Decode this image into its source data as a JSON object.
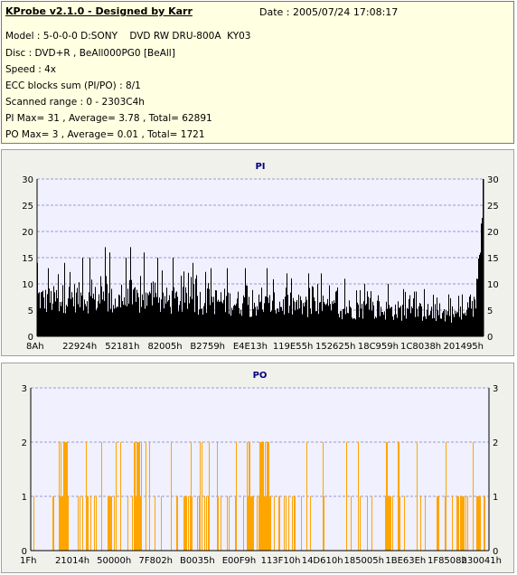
{
  "info": {
    "title": "KProbe v2.1.0 - Designed by Karr",
    "date": "Date : 2005/07/24 17:08:17",
    "lines": [
      "Model : 5-0-0-0 D:SONY    DVD RW DRU-800A  KY03",
      "Disc : DVD+R , BeAll000PG0 [BeAll]",
      "Speed : 4x",
      "ECC blocks sum (PI/PO) : 8/1",
      "Scanned range : 0 - 2303C4h",
      "PI Max= 31 , Average= 3.78 , Total= 62891",
      "PO Max= 3 , Average= 0.01 , Total= 1721"
    ]
  },
  "colors": {
    "pi_bars": "#000000",
    "po_bars": "#ffa500",
    "plot_bg": "#f0f0ff",
    "grid": "#9a9acd",
    "title": "#000080"
  },
  "chart_data": [
    {
      "type": "bar",
      "title": "PI",
      "ylim": [
        0,
        30
      ],
      "yticks": [
        0,
        5,
        10,
        15,
        20,
        25,
        30
      ],
      "xticks": [
        "8Ah",
        "22924h",
        "52181h",
        "82005h",
        "B2759h",
        "E4E13h",
        "119E55h",
        "152625h",
        "18C959h",
        "1C8038h",
        "201495h"
      ],
      "grid": true,
      "summary": {
        "max": 31,
        "average": 3.78,
        "total": 62891
      },
      "profile_points": [
        [
          0,
          10
        ],
        [
          10,
          9
        ],
        [
          40,
          10
        ],
        [
          80,
          9
        ],
        [
          120,
          9
        ],
        [
          160,
          9
        ],
        [
          200,
          9
        ],
        [
          240,
          8
        ],
        [
          280,
          8
        ],
        [
          320,
          7
        ],
        [
          360,
          7
        ],
        [
          400,
          6.5
        ],
        [
          440,
          6
        ],
        [
          475,
          5.5
        ],
        [
          478,
          5.5
        ],
        [
          484,
          8
        ],
        [
          488,
          14
        ],
        [
          491,
          22
        ],
        [
          493,
          29
        ]
      ],
      "spikes": [
        [
          0,
          14
        ],
        [
          12,
          13
        ],
        [
          30,
          14
        ],
        [
          50,
          15
        ],
        [
          58,
          15
        ],
        [
          75,
          17
        ],
        [
          80,
          16
        ],
        [
          98,
          15
        ],
        [
          103,
          17
        ],
        [
          118,
          16
        ],
        [
          133,
          15
        ],
        [
          150,
          15
        ],
        [
          172,
          14
        ],
        [
          192,
          13
        ],
        [
          210,
          13
        ],
        [
          230,
          13
        ],
        [
          254,
          13
        ],
        [
          276,
          12
        ],
        [
          300,
          12
        ],
        [
          314,
          12
        ],
        [
          340,
          11
        ],
        [
          362,
          10
        ],
        [
          388,
          10
        ],
        [
          405,
          9
        ],
        [
          428,
          9
        ],
        [
          455,
          8
        ],
        [
          470,
          8
        ]
      ]
    },
    {
      "type": "bar",
      "title": "PO",
      "ylim": [
        0,
        3
      ],
      "yticks": [
        0,
        1,
        2,
        3
      ],
      "xticks": [
        "1Fh",
        "21014h",
        "50000h",
        "7F802h",
        "B0035h",
        "E00F9h",
        "113F10h",
        "14D610h",
        "185005h",
        "1BE63Eh",
        "1F8508h",
        "230041h"
      ],
      "grid": true,
      "summary": {
        "max": 3,
        "average": 0.01,
        "total": 1721
      },
      "dense_level_2_ranges": [
        [
          31,
          41
        ],
        [
          61,
          63
        ],
        [
          114,
          122
        ],
        [
          239,
          246
        ],
        [
          253,
          263
        ],
        [
          392,
          395
        ]
      ],
      "dense_level_1_ranges": [
        [
          250,
          265
        ],
        [
          396,
          401
        ]
      ]
    }
  ]
}
